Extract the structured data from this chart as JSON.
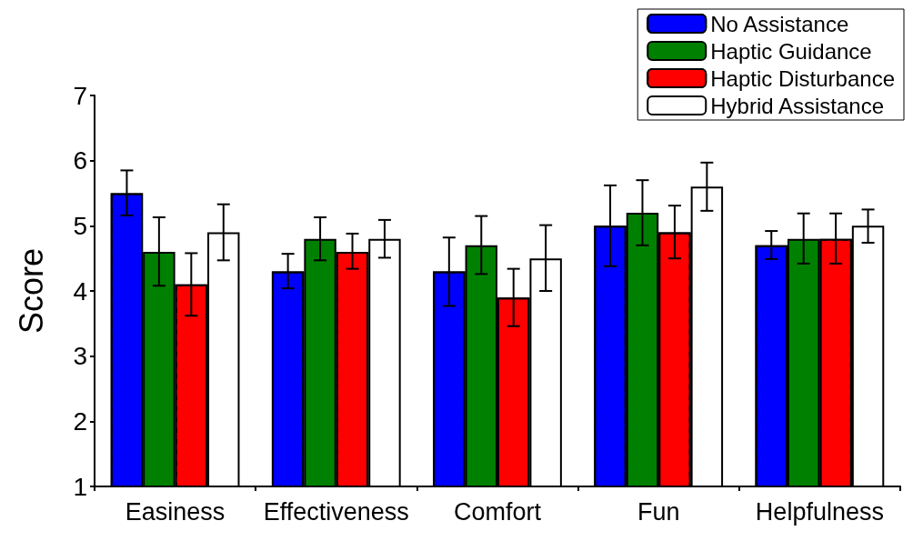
{
  "chart_data": {
    "type": "bar",
    "ylabel": "Score",
    "categories": [
      "Easiness",
      "Effectiveness",
      "Comfort",
      "Fun",
      "Helpfulness"
    ],
    "series": [
      {
        "name": "No Assistance",
        "color": "#0000ff",
        "values": [
          5.5,
          4.3,
          4.3,
          5.0,
          4.7
        ],
        "errors": [
          [
            5.16,
            5.85
          ],
          [
            4.04,
            4.57
          ],
          [
            3.77,
            4.82
          ],
          [
            4.38,
            5.62
          ],
          [
            4.49,
            4.92
          ]
        ]
      },
      {
        "name": "Haptic Guidance",
        "color": "#008000",
        "values": [
          4.6,
          4.8,
          4.7,
          5.2,
          4.8
        ],
        "errors": [
          [
            4.08,
            5.13
          ],
          [
            4.47,
            5.13
          ],
          [
            4.26,
            5.15
          ],
          [
            4.7,
            5.7
          ],
          [
            4.42,
            5.19
          ]
        ]
      },
      {
        "name": "Haptic Disturbance",
        "color": "#ff0000",
        "values": [
          4.1,
          4.6,
          3.9,
          4.9,
          4.8
        ],
        "errors": [
          [
            3.62,
            4.58
          ],
          [
            4.34,
            4.88
          ],
          [
            3.46,
            4.34
          ],
          [
            4.5,
            5.31
          ],
          [
            4.42,
            5.19
          ]
        ]
      },
      {
        "name": "Hybrid Assistance",
        "color": "#ffffff",
        "values": [
          4.9,
          4.8,
          4.5,
          5.6,
          5.0
        ],
        "errors": [
          [
            4.47,
            5.33
          ],
          [
            4.51,
            5.09
          ],
          [
            4.0,
            5.01
          ],
          [
            5.23,
            5.97
          ],
          [
            4.74,
            5.25
          ]
        ]
      }
    ],
    "ylim": [
      1,
      7
    ],
    "yticks": [
      1,
      2,
      3,
      4,
      5,
      6,
      7
    ],
    "grid": false,
    "legend": "top right"
  }
}
